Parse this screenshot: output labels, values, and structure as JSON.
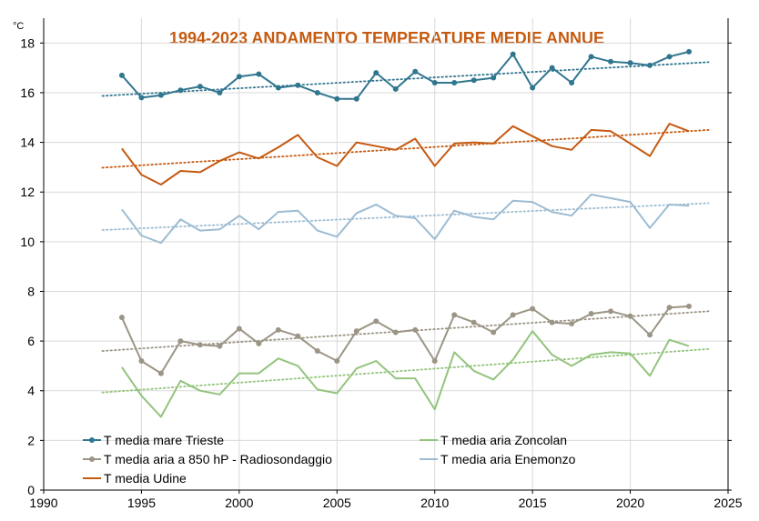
{
  "chart_data": {
    "type": "line",
    "title": "1994-2023 ANDAMENTO TEMPERATURE MEDIE ANNUE",
    "ylabel": "°C",
    "xlabel": "",
    "xlim": [
      1990,
      2025
    ],
    "ylim": [
      0,
      19
    ],
    "x_ticks": [
      "1990",
      "1995",
      "2000",
      "2005",
      "2010",
      "2015",
      "2020",
      "2025"
    ],
    "y_ticks": [
      "0",
      "2",
      "4",
      "6",
      "8",
      "10",
      "12",
      "14",
      "16",
      "18"
    ],
    "x_tick_values": [
      1990,
      1995,
      2000,
      2005,
      2010,
      2015,
      2020,
      2025
    ],
    "y_tick_values": [
      0,
      2,
      4,
      6,
      8,
      10,
      12,
      14,
      16,
      18
    ],
    "grid": true,
    "legend_position": "bottom-left",
    "x": [
      1994,
      1995,
      1996,
      1997,
      1998,
      1999,
      2000,
      2001,
      2002,
      2003,
      2004,
      2005,
      2006,
      2007,
      2008,
      2009,
      2010,
      2011,
      2012,
      2013,
      2014,
      2015,
      2016,
      2017,
      2018,
      2019,
      2020,
      2021,
      2022,
      2023
    ],
    "series": [
      {
        "name": "T media mare Trieste",
        "color": "#31768f",
        "markers": true,
        "values": [
          16.7,
          15.8,
          15.9,
          16.1,
          16.25,
          16.0,
          16.65,
          16.75,
          16.2,
          16.3,
          16.0,
          15.75,
          15.75,
          16.8,
          16.15,
          16.85,
          16.4,
          16.4,
          16.5,
          16.6,
          17.55,
          16.2,
          17.0,
          16.4,
          17.45,
          17.25,
          17.2,
          17.1,
          17.45,
          17.65
        ],
        "trend": [
          15.87,
          17.23
        ]
      },
      {
        "name": "T media Udine",
        "color": "#c55a11",
        "markers": false,
        "values": [
          13.75,
          12.7,
          12.3,
          12.85,
          12.8,
          13.25,
          13.6,
          13.35,
          13.8,
          14.3,
          13.4,
          13.05,
          14.0,
          13.85,
          13.7,
          14.15,
          13.05,
          13.95,
          14.0,
          13.95,
          14.65,
          14.25,
          13.85,
          13.7,
          14.5,
          14.45,
          13.95,
          13.45,
          14.75,
          14.45
        ],
        "trend": [
          12.98,
          14.5
        ]
      },
      {
        "name": "T media  aria Enemonzo",
        "color": "#9dbcd2",
        "markers": false,
        "values": [
          11.3,
          10.25,
          9.95,
          10.9,
          10.45,
          10.5,
          11.05,
          10.5,
          11.2,
          11.25,
          10.45,
          10.2,
          11.15,
          11.5,
          11.05,
          10.95,
          10.1,
          11.25,
          11.0,
          10.9,
          11.65,
          11.6,
          11.2,
          11.05,
          11.9,
          11.75,
          11.6,
          10.55,
          11.5,
          11.45
        ],
        "trend": [
          10.47,
          11.55
        ]
      },
      {
        "name": "T media aria a 850 hP - Radiosondaggio",
        "color": "#9c9586",
        "markers": true,
        "values": [
          6.95,
          5.2,
          4.7,
          6.0,
          5.85,
          5.8,
          6.5,
          5.9,
          6.45,
          6.2,
          5.6,
          5.2,
          6.4,
          6.8,
          6.35,
          6.45,
          5.2,
          7.05,
          6.75,
          6.35,
          7.05,
          7.3,
          6.75,
          6.7,
          7.1,
          7.2,
          7.0,
          6.25,
          7.35,
          7.4
        ],
        "trend": [
          5.6,
          7.2
        ]
      },
      {
        "name": "T media  aria Zoncolan",
        "color": "#93c47d",
        "markers": false,
        "values": [
          4.95,
          3.8,
          2.95,
          4.4,
          4.0,
          3.85,
          4.7,
          4.7,
          5.3,
          5.0,
          4.05,
          3.9,
          4.9,
          5.2,
          4.5,
          4.5,
          3.25,
          5.55,
          4.8,
          4.45,
          5.25,
          6.4,
          5.45,
          5.0,
          5.45,
          5.55,
          5.5,
          4.6,
          6.05,
          5.8
        ],
        "trend": [
          3.93,
          5.68
        ]
      }
    ],
    "trend_x": [
      1993,
      2024
    ],
    "legend": {
      "left": [
        "T media mare Trieste",
        "T media aria a 850 hP - Radiosondaggio",
        "T media Udine"
      ],
      "right": [
        "T media  aria Zoncolan",
        "T media  aria Enemonzo"
      ]
    }
  },
  "colors": {
    "title": "#c55a11",
    "grid": "#d9d9d9",
    "axis": "#000000"
  }
}
